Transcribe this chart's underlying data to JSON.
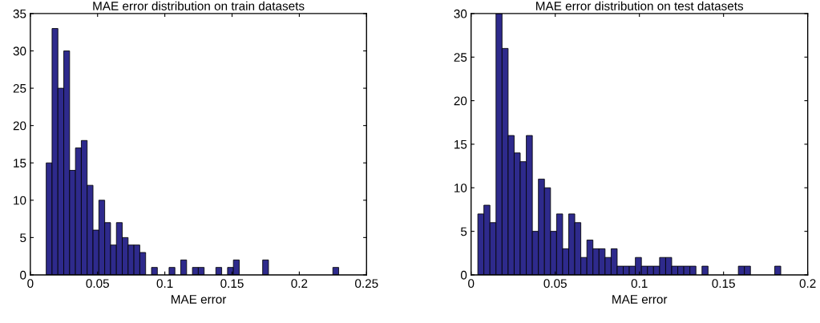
{
  "chart_data": [
    {
      "type": "histogram",
      "title": "MAE error distribution on train datasets",
      "xlabel": "MAE error",
      "color": "#2e2a8c",
      "bins": [
        0.0118,
        0.01615,
        0.0205,
        0.02485,
        0.0292,
        0.03355,
        0.0379,
        0.04225,
        0.0466,
        0.05095,
        0.0553,
        0.05965,
        0.064,
        0.06835,
        0.0727,
        0.07705,
        0.0814,
        0.08575,
        0.0901,
        0.09445,
        0.0988,
        0.10315,
        0.1075,
        0.11185,
        0.1162,
        0.12055,
        0.1249,
        0.12925,
        0.1336,
        0.13795,
        0.1423,
        0.14665,
        0.151,
        0.15535,
        0.1597,
        0.16405,
        0.1684,
        0.17275,
        0.1771,
        0.18145,
        0.1858,
        0.19015,
        0.1945,
        0.19885,
        0.2032,
        0.20755,
        0.2119,
        0.21625,
        0.2206,
        0.22495,
        0.2293
      ],
      "values": [
        15,
        33,
        25,
        30,
        14,
        17,
        18,
        12,
        6,
        10,
        7,
        4,
        7,
        5,
        4,
        4,
        3,
        0,
        1,
        0,
        0,
        1,
        0,
        2,
        0,
        1,
        1,
        0,
        0,
        1,
        0,
        1,
        2,
        0,
        0,
        0,
        0,
        2,
        0,
        0,
        0,
        0,
        0,
        0,
        0,
        0,
        0,
        0,
        0,
        1
      ],
      "xlim": [
        0,
        0.25
      ],
      "xticks": [
        0,
        0.05,
        0.1,
        0.15,
        0.2,
        0.25
      ],
      "ylim": [
        0,
        35
      ],
      "yticks": [
        0,
        5,
        10,
        15,
        20,
        25,
        30,
        35
      ],
      "grid": false,
      "legend": false
    },
    {
      "type": "histogram",
      "title": "MAE error distribution on test datasets",
      "xlabel": "MAE error",
      "color": "#2e2a8c",
      "bins": [
        0.004,
        0.0076,
        0.0112,
        0.0148,
        0.0184,
        0.022,
        0.0256,
        0.0292,
        0.0328,
        0.0364,
        0.04,
        0.0436,
        0.0472,
        0.0508,
        0.0544,
        0.058,
        0.0616,
        0.0652,
        0.0688,
        0.0724,
        0.076,
        0.0796,
        0.0832,
        0.0868,
        0.0904,
        0.094,
        0.0976,
        0.1012,
        0.1048,
        0.1084,
        0.112,
        0.1156,
        0.1192,
        0.1228,
        0.1264,
        0.13,
        0.1336,
        0.1372,
        0.1408,
        0.1444,
        0.148,
        0.1516,
        0.1552,
        0.1588,
        0.1624,
        0.166,
        0.1696,
        0.1732,
        0.1768,
        0.1804,
        0.184
      ],
      "values": [
        7,
        8,
        6,
        30,
        26,
        16,
        14,
        13,
        16,
        5,
        11,
        10,
        5,
        7,
        3,
        7,
        6,
        2,
        4,
        3,
        3,
        2,
        3,
        1,
        1,
        1,
        2,
        1,
        1,
        1,
        2,
        2,
        1,
        1,
        1,
        1,
        0,
        1,
        0,
        0,
        0,
        0,
        0,
        1,
        1,
        0,
        0,
        0,
        0,
        1
      ],
      "xlim": [
        0,
        0.2
      ],
      "xticks": [
        0,
        0.05,
        0.1,
        0.15,
        0.2
      ],
      "ylim": [
        0,
        30
      ],
      "yticks": [
        0,
        5,
        10,
        15,
        20,
        25,
        30
      ],
      "grid": false,
      "legend": false
    }
  ]
}
